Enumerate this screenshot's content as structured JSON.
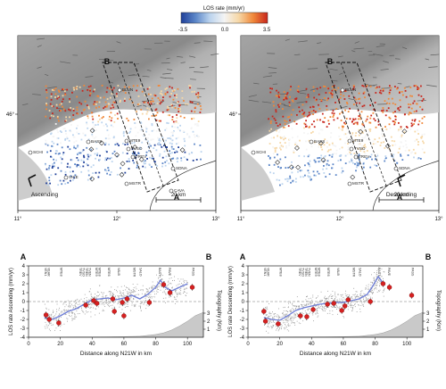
{
  "colorbar": {
    "title": "LOS rate (mm/yr)",
    "ticks": [
      "-3.5",
      "0.0",
      "3.5"
    ],
    "colors": [
      "#1f3f99",
      "#5b86c8",
      "#bcd4ee",
      "#f4f4f4",
      "#f6d7a6",
      "#f0883a",
      "#c8261c"
    ]
  },
  "maps": [
    {
      "mode_label": "Ascending",
      "scale_label": "20 km",
      "lat_label": "46°",
      "lon_ticks": [
        "11°",
        "12°",
        "13°"
      ],
      "profile_end_a": "A",
      "profile_end_b": "B",
      "stations": [
        "BLUN",
        "BASS",
        "SCHI",
        "MTE9",
        "TVSO",
        "TREV",
        "SDNA",
        "VICE",
        "MSTR",
        "CAVA"
      ]
    },
    {
      "mode_label": "Descending",
      "scale_label": "20 km",
      "lat_label": "46°",
      "lon_ticks": [
        "11°",
        "12°",
        "13°"
      ],
      "profile_end_a": "A",
      "profile_end_b": "B",
      "stations": [
        "BLUN",
        "BASS",
        "SCHI",
        "MTE9",
        "TVSO",
        "TREV",
        "SDNA",
        "MSTR"
      ]
    }
  ],
  "profile_stations": [
    "VEN1",
    "VEAR",
    "MTE8",
    "TREV",
    "TVSO",
    "TREN",
    "TVEN",
    "MTE9",
    "MTE8",
    "MTE6",
    "VALB",
    "MSTR",
    "SALO",
    "BAST",
    "PAVE",
    "PASS"
  ],
  "chart_data": [
    {
      "type": "scatter",
      "title": "",
      "xlabel": "Distance along N21W in km",
      "ylabel": "LOS rate Ascending (mm/yr)",
      "y2label": "Topography (Km)",
      "end_labels": [
        "A",
        "B"
      ],
      "xlim": [
        0,
        110
      ],
      "ylim": [
        -4,
        4
      ],
      "xticks": [
        0,
        20,
        40,
        60,
        80,
        100
      ],
      "yticks": [
        -4,
        -3,
        -2,
        -1,
        0,
        1,
        2,
        3,
        4
      ],
      "y2ticks": [
        1,
        2,
        3
      ],
      "series": [
        {
          "role": "insar-profile-mean",
          "x": [
            10,
            15,
            20,
            25,
            30,
            35,
            40,
            45,
            50,
            55,
            60,
            65,
            70,
            75,
            80,
            83,
            86,
            90,
            95,
            100
          ],
          "y": [
            -1.8,
            -2.0,
            -1.6,
            -1.1,
            -0.8,
            -0.3,
            0.2,
            0.3,
            0.4,
            0.2,
            0.4,
            0.7,
            0.3,
            0.8,
            1.6,
            2.4,
            1.6,
            1.2,
            1.6,
            2.0
          ]
        },
        {
          "role": "gnss-stations",
          "x": [
            11,
            13,
            19,
            36,
            41,
            43,
            53,
            54,
            59,
            60,
            62,
            76,
            85,
            89,
            103
          ],
          "y": [
            -1.5,
            -2.0,
            -2.4,
            -0.4,
            0.1,
            -0.2,
            0.3,
            -1.1,
            -0.1,
            -1.6,
            0.3,
            -0.1,
            1.9,
            1.0,
            1.6
          ]
        }
      ],
      "topography": {
        "x": [
          0,
          10,
          20,
          30,
          40,
          50,
          60,
          70,
          80,
          85,
          90,
          95,
          100,
          105,
          110
        ],
        "y": [
          0.02,
          0.02,
          0.03,
          0.04,
          0.05,
          0.06,
          0.08,
          0.12,
          0.35,
          0.55,
          0.9,
          1.4,
          2.0,
          2.7,
          3.1
        ]
      }
    },
    {
      "type": "scatter",
      "title": "",
      "xlabel": "Distance along N21W in km",
      "ylabel": "LOS rate Descending (mm/yr)",
      "y2label": "Topography (Km)",
      "end_labels": [
        "A",
        "B"
      ],
      "xlim": [
        0,
        110
      ],
      "ylim": [
        -4,
        4
      ],
      "xticks": [
        0,
        20,
        40,
        60,
        80,
        100
      ],
      "yticks": [
        -4,
        -3,
        -2,
        -1,
        0,
        1,
        2,
        3,
        4
      ],
      "y2ticks": [
        1,
        2,
        3
      ],
      "series": [
        {
          "role": "insar-profile-mean",
          "x": [
            10,
            15,
            20,
            25,
            30,
            35,
            40,
            45,
            50,
            55,
            60,
            65,
            70,
            75,
            78,
            82,
            86
          ],
          "y": [
            -1.8,
            -2.0,
            -2.1,
            -1.6,
            -1.0,
            -0.7,
            -0.5,
            -0.3,
            -0.2,
            -0.1,
            -0.1,
            0.1,
            0.3,
            0.8,
            1.6,
            2.8,
            1.8
          ]
        },
        {
          "role": "gnss-stations",
          "x": [
            10,
            11,
            19,
            33,
            37,
            41,
            50,
            54,
            59,
            61,
            63,
            77,
            85,
            89,
            103
          ],
          "y": [
            -1.1,
            -2.2,
            -2.5,
            -1.6,
            -1.7,
            -0.9,
            -0.3,
            -0.2,
            -1.0,
            -0.5,
            0.2,
            0.0,
            2.0,
            1.6,
            0.7
          ]
        }
      ],
      "topography": {
        "x": [
          0,
          10,
          20,
          30,
          40,
          50,
          60,
          70,
          80,
          85,
          90,
          95,
          100,
          105,
          110
        ],
        "y": [
          0.02,
          0.02,
          0.03,
          0.04,
          0.05,
          0.06,
          0.08,
          0.12,
          0.35,
          0.55,
          0.9,
          1.4,
          2.0,
          2.7,
          3.1
        ]
      }
    }
  ]
}
